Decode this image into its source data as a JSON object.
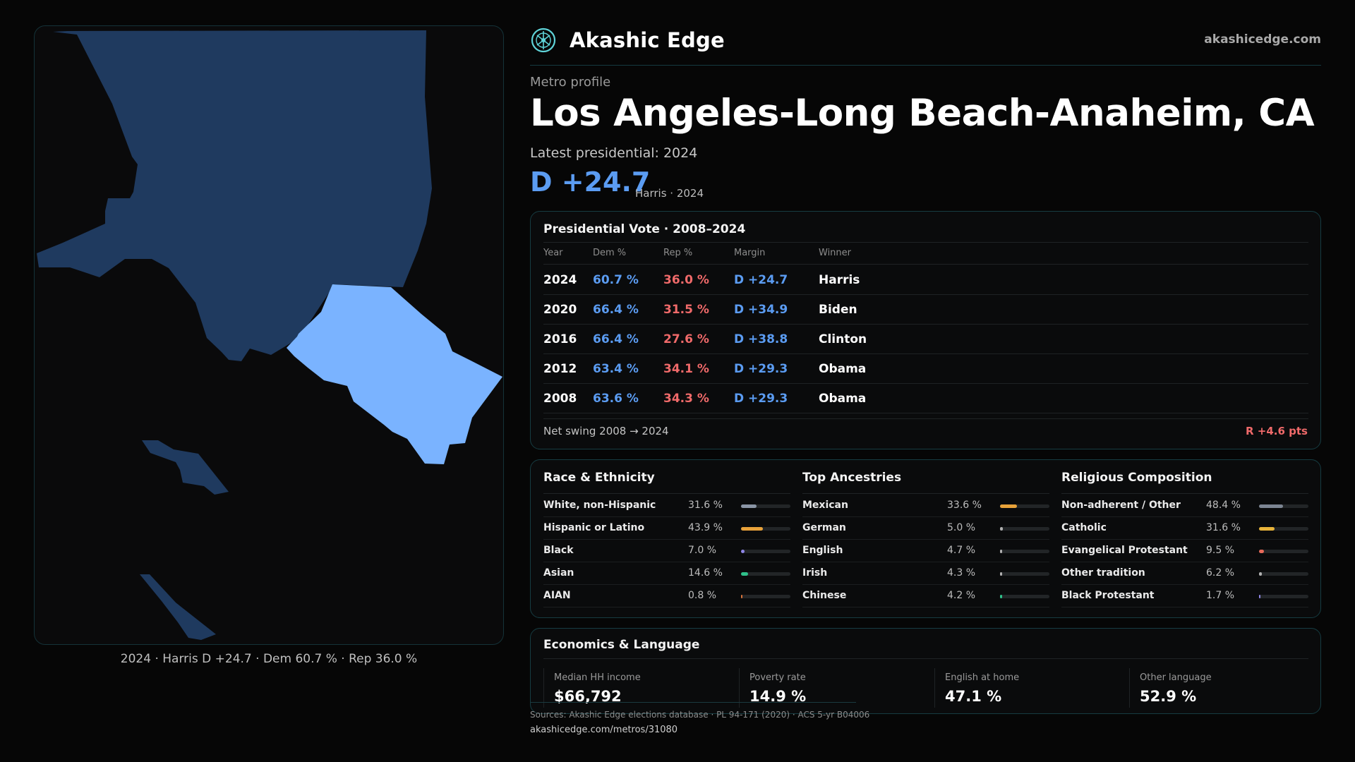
{
  "brand": {
    "name": "Akashic Edge",
    "url": "akashicedge.com"
  },
  "header": {
    "kicker": "Metro profile",
    "title": "Los Angeles-Long Beach-Anaheim, CA",
    "latest_label": "Latest presidential: 2024",
    "margin": "D +24.7",
    "margin_sub": "Harris · 2024"
  },
  "map": {
    "caption": "2024 · Harris D +24.7 · Dem 60.7 % · Rep 36.0 %",
    "colors": {
      "la_county": "#1f3a5f",
      "orange_county": "#7ab3ff",
      "background": "#0a0a0b"
    }
  },
  "vote": {
    "title": "Presidential Vote · 2008–2024",
    "columns": {
      "year": "Year",
      "dem": "Dem %",
      "rep": "Rep %",
      "margin": "Margin",
      "winner": "Winner"
    },
    "rows": [
      {
        "year": "2024",
        "dem": "60.7 %",
        "rep": "36.0 %",
        "margin": "D +24.7",
        "winner": "Harris"
      },
      {
        "year": "2020",
        "dem": "66.4 %",
        "rep": "31.5 %",
        "margin": "D +34.9",
        "winner": "Biden"
      },
      {
        "year": "2016",
        "dem": "66.4 %",
        "rep": "27.6 %",
        "margin": "D +38.8",
        "winner": "Clinton"
      },
      {
        "year": "2012",
        "dem": "63.4 %",
        "rep": "34.1 %",
        "margin": "D +29.3",
        "winner": "Obama"
      },
      {
        "year": "2008",
        "dem": "63.6 %",
        "rep": "34.3 %",
        "margin": "D +29.3",
        "winner": "Obama"
      }
    ],
    "swing_label": "Net swing 2008 → 2024",
    "swing_value": "R +4.6 pts"
  },
  "race": {
    "title": "Race & Ethnicity",
    "items": [
      {
        "label": "White, non-Hispanic",
        "value": "31.6 %",
        "pct": 31.6,
        "color": "#8a95a5"
      },
      {
        "label": "Hispanic or Latino",
        "value": "43.9 %",
        "pct": 43.9,
        "color": "#e8a23a"
      },
      {
        "label": "Black",
        "value": "7.0 %",
        "pct": 7.0,
        "color": "#8f86e6"
      },
      {
        "label": "Asian",
        "value": "14.6 %",
        "pct": 14.6,
        "color": "#2fc08a"
      },
      {
        "label": "AIAN",
        "value": "0.8 %",
        "pct": 0.8,
        "color": "#d8743a"
      }
    ]
  },
  "ancestry": {
    "title": "Top Ancestries",
    "items": [
      {
        "label": "Mexican",
        "value": "33.6 %",
        "pct": 33.6,
        "color": "#e8a23a"
      },
      {
        "label": "German",
        "value": "5.0 %",
        "pct": 5.0,
        "color": "#b0b0b0"
      },
      {
        "label": "English",
        "value": "4.7 %",
        "pct": 4.7,
        "color": "#b0b0b0"
      },
      {
        "label": "Irish",
        "value": "4.3 %",
        "pct": 4.3,
        "color": "#b0b0b0"
      },
      {
        "label": "Chinese",
        "value": "4.2 %",
        "pct": 4.2,
        "color": "#2fc08a"
      }
    ]
  },
  "religion": {
    "title": "Religious Composition",
    "items": [
      {
        "label": "Non-adherent / Other",
        "value": "48.4 %",
        "pct": 48.4,
        "color": "#7c8592"
      },
      {
        "label": "Catholic",
        "value": "31.6 %",
        "pct": 31.6,
        "color": "#e8b43a"
      },
      {
        "label": "Evangelical Protestant",
        "value": "9.5 %",
        "pct": 9.5,
        "color": "#e86a5a"
      },
      {
        "label": "Other tradition",
        "value": "6.2 %",
        "pct": 6.2,
        "color": "#b0b0b0"
      },
      {
        "label": "Black Protestant",
        "value": "1.7 %",
        "pct": 1.7,
        "color": "#8f86e6"
      }
    ]
  },
  "economics": {
    "title": "Economics & Language",
    "stats": [
      {
        "label": "Median HH income",
        "value": "$66,792"
      },
      {
        "label": "Poverty rate",
        "value": "14.9 %"
      },
      {
        "label": "English at home",
        "value": "47.1 %"
      },
      {
        "label": "Other language",
        "value": "52.9 %"
      }
    ]
  },
  "footer": {
    "sources": "Sources: Akashic Edge elections database · PL 94-171 (2020) · ACS 5-yr B04006",
    "permalink": "akashicedge.com/metros/31080"
  }
}
